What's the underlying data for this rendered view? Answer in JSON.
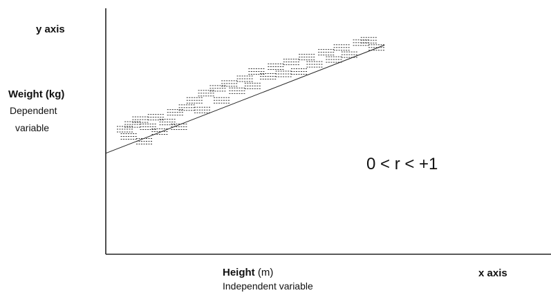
{
  "chart_data": {
    "type": "scatter",
    "title": "",
    "y_axis_caption": "y axis",
    "x_axis_caption": "x axis",
    "ylabel": {
      "quantity": "Weight",
      "unit": "(kg)",
      "role_line1": "Dependent",
      "role_line2": "variable"
    },
    "xlabel": {
      "quantity": "Height",
      "unit": "(m)",
      "role": "Independent variable"
    },
    "annotation": "0 < r < +1",
    "xlim": [
      0,
      10
    ],
    "ylim": [
      0,
      10
    ],
    "grid": false,
    "points": [
      [
        0.5,
        5.2
      ],
      [
        0.7,
        5.4
      ],
      [
        0.6,
        4.9
      ],
      [
        0.9,
        5.6
      ],
      [
        1.1,
        5.3
      ],
      [
        1.0,
        4.7
      ],
      [
        1.3,
        5.7
      ],
      [
        1.4,
        5.1
      ],
      [
        1.6,
        5.5
      ],
      [
        1.8,
        5.9
      ],
      [
        1.9,
        5.3
      ],
      [
        2.1,
        6.1
      ],
      [
        2.3,
        6.4
      ],
      [
        2.5,
        6.0
      ],
      [
        2.6,
        6.7
      ],
      [
        2.9,
        6.9
      ],
      [
        3.0,
        6.4
      ],
      [
        3.2,
        7.1
      ],
      [
        3.4,
        6.8
      ],
      [
        3.6,
        7.3
      ],
      [
        3.8,
        7.0
      ],
      [
        3.9,
        7.6
      ],
      [
        4.2,
        7.4
      ],
      [
        4.4,
        7.8
      ],
      [
        4.6,
        7.5
      ],
      [
        4.8,
        8.0
      ],
      [
        5.0,
        7.6
      ],
      [
        5.2,
        8.2
      ],
      [
        5.4,
        7.9
      ],
      [
        5.7,
        8.4
      ],
      [
        5.9,
        8.1
      ],
      [
        6.1,
        8.6
      ],
      [
        6.3,
        8.3
      ],
      [
        6.6,
        8.8
      ],
      [
        6.8,
        8.9
      ],
      [
        7.0,
        8.6
      ]
    ],
    "trend_line": {
      "x": [
        0,
        7.2
      ],
      "y": [
        4.2,
        8.7
      ]
    }
  }
}
